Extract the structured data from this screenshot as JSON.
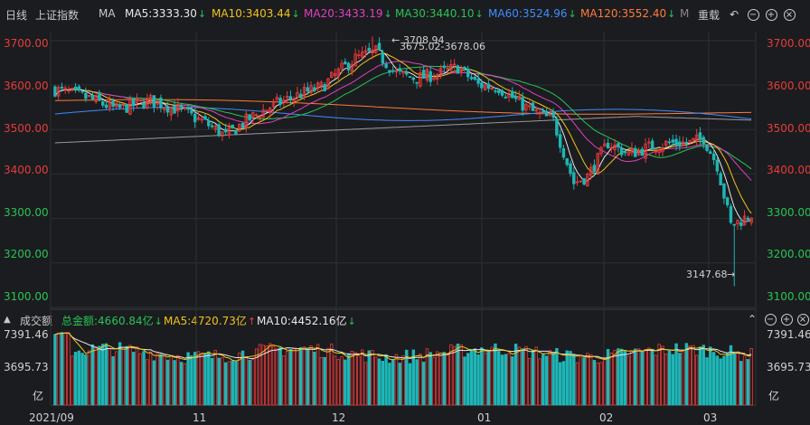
{
  "header": {
    "period_label": "日线",
    "index_name": "上证指数",
    "ma_label": "MA",
    "ma_items": [
      {
        "label": "MA5:3333.30",
        "color": "#e8e8e8",
        "dir": "down"
      },
      {
        "label": "MA10:3403.44",
        "color": "#f0c419",
        "dir": "down"
      },
      {
        "label": "MA20:3433.19",
        "color": "#e040c0",
        "dir": "down"
      },
      {
        "label": "MA30:3440.10",
        "color": "#27c456",
        "dir": "down"
      },
      {
        "label": "MA60:3524.96",
        "color": "#3f8cff",
        "dir": "down"
      },
      {
        "label": "MA120:3552.40",
        "color": "#ff7a3c",
        "dir": "down"
      }
    ],
    "ma_truncated": "M",
    "reset_label": "重载",
    "icons": [
      "undo-icon",
      "minus-icon",
      "plus-icon",
      "close-icon"
    ]
  },
  "price_axis": {
    "ticks": [
      "3700.00",
      "3600.00",
      "3500.00",
      "3400.00",
      "3300.00",
      "3200.00",
      "3100.00"
    ],
    "tick_color": "#e53c3c"
  },
  "annotations": {
    "high_label": "3708.94",
    "range_label": "3675.02-3678.06",
    "low_label": "3147.68"
  },
  "volume_header": {
    "label": "成交额",
    "total_label": "总金额:4660.84亿",
    "total_color": "#27c456",
    "ma5_label": "MA5:4720.73亿",
    "ma5_color": "#f0c419",
    "ma10_label": "MA10:4452.16亿",
    "ma10_color": "#e8e8e8",
    "icons": [
      "chevron-up-icon",
      "minus-icon",
      "plus-icon",
      "close-icon"
    ]
  },
  "volume_axis": {
    "ticks": [
      "7391.46",
      "3695.73",
      "亿"
    ]
  },
  "time_axis": {
    "ticks": [
      "2021/09",
      "11",
      "12",
      "01",
      "02",
      "03"
    ]
  },
  "chart_data": {
    "type": "candlestick",
    "title": "上证指数 日线",
    "ylim": [
      3100,
      3720
    ],
    "x_labels": [
      "2021/09",
      "11",
      "12",
      "01",
      "02",
      "03"
    ],
    "extrema": {
      "high": 3708.94,
      "low": 3147.68
    },
    "volume_ylim": [
      0,
      7391.46
    ],
    "colors": {
      "up": "#e83a3a",
      "down": "#1fb6b6",
      "ma5": "#e8e8e8",
      "ma10": "#f0c419",
      "ma20": "#e040c0",
      "ma30": "#27c456",
      "ma60": "#3f8cff",
      "ma120": "#ff7a3c",
      "grid": "#2e2f33"
    }
  }
}
